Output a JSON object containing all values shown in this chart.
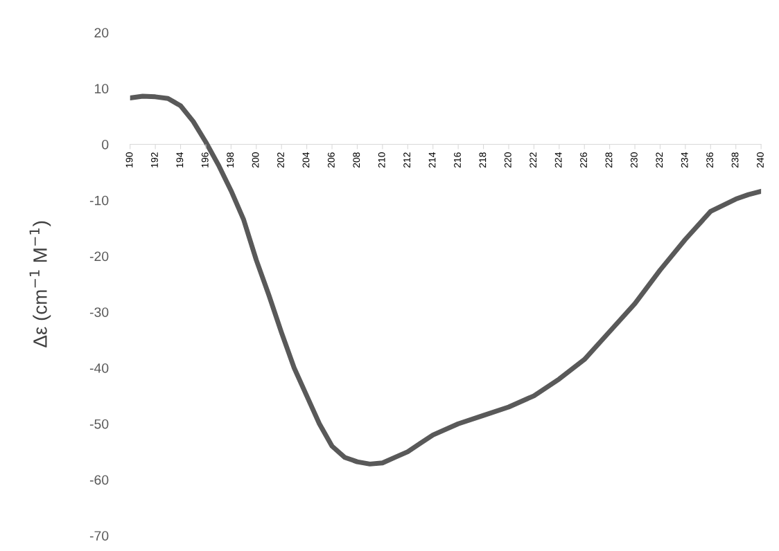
{
  "chart_data": {
    "type": "line",
    "ylabel": "Δε (cm$^{−1}$ M$^{−1}$)",
    "x": [
      190,
      191,
      192,
      193,
      194,
      195,
      196,
      197,
      198,
      199,
      200,
      201,
      202,
      203,
      204,
      205,
      206,
      207,
      208,
      209,
      210,
      211,
      212,
      213,
      214,
      216,
      218,
      220,
      222,
      224,
      226,
      228,
      230,
      232,
      234,
      236,
      238,
      239,
      240
    ],
    "series": [
      {
        "color": "#595959",
        "values": [
          8.3,
          8.6,
          8.5,
          8.2,
          6.9,
          4.1,
          0.4,
          -3.7,
          -8.3,
          -13.5,
          -20.7,
          -27,
          -33.7,
          -40,
          -45,
          -50,
          -54,
          -56,
          -56.8,
          -57.2,
          -57,
          -56,
          -55,
          -53.5,
          -52,
          -50,
          -48.5,
          -47,
          -45,
          -42,
          -38.5,
          -33.5,
          -28.5,
          -22.5,
          -17,
          -12,
          -9.8,
          -9,
          -8.4
        ]
      }
    ],
    "xlim": [
      190,
      240
    ],
    "xticks": [
      190,
      192,
      194,
      196,
      198,
      200,
      202,
      204,
      206,
      208,
      210,
      212,
      214,
      216,
      218,
      220,
      222,
      224,
      226,
      228,
      230,
      232,
      234,
      236,
      238,
      240
    ],
    "ylim": [
      -70,
      20
    ],
    "yticks": [
      -70,
      -60,
      -50,
      -40,
      -30,
      -20,
      -10,
      0,
      10,
      20
    ],
    "grid": false,
    "legend": false,
    "marker": "none",
    "line_style": "solid"
  }
}
